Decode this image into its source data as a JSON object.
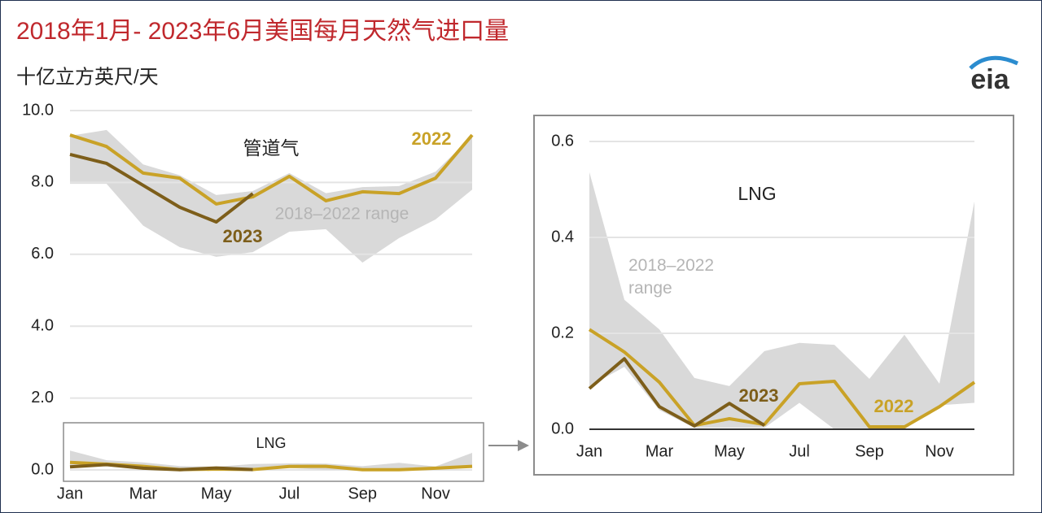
{
  "logo": "eia",
  "chart_data": [
    {
      "type": "line",
      "title": "2018年1月- 2023年6月美国每月天然气进口量",
      "y_label": "十亿立方英尺/天",
      "annotation": "管道气",
      "categories": [
        "Jan",
        null,
        "Mar",
        null,
        "May",
        null,
        "Jul",
        null,
        "Sep",
        null,
        "Nov",
        null
      ],
      "ylim": [
        0,
        10
      ],
      "yticks": [
        {
          "value": 0,
          "label": "0.0"
        },
        {
          "value": 2,
          "label": "2.0"
        },
        {
          "value": 4,
          "label": "4.0"
        },
        {
          "value": 6,
          "label": "6.0"
        },
        {
          "value": 8,
          "label": "8.0"
        },
        {
          "value": 10,
          "label": "10.0"
        }
      ],
      "grid": true,
      "range": {
        "name": "2018–2022 range",
        "color": "#d9d9d9",
        "high": [
          9.3,
          9.46,
          8.5,
          8.2,
          7.65,
          7.76,
          8.26,
          7.7,
          7.87,
          7.9,
          8.3,
          9.3
        ],
        "low": [
          7.96,
          7.96,
          6.8,
          6.2,
          5.93,
          6.06,
          6.63,
          6.7,
          5.77,
          6.45,
          6.97,
          7.8
        ]
      },
      "series": [
        {
          "name": "2022",
          "color": "#c9a227",
          "values": [
            9.32,
            9.0,
            8.26,
            8.12,
            7.4,
            7.6,
            8.17,
            7.49,
            7.74,
            7.69,
            8.12,
            9.32
          ]
        },
        {
          "name": "2023",
          "color": "#7d5e1a",
          "values": [
            8.78,
            8.53,
            7.92,
            7.31,
            6.9,
            7.69,
            null,
            null,
            null,
            null,
            null,
            null
          ]
        }
      ]
    },
    {
      "type": "line",
      "annotation": "LNG",
      "categories": [
        "Jan",
        null,
        "Mar",
        null,
        "May",
        null,
        "Jul",
        null,
        "Sep",
        null,
        "Nov",
        null
      ],
      "ylim": [
        0,
        0.6
      ],
      "yticks": [
        {
          "value": 0,
          "label": "0.0"
        },
        {
          "value": 0.2,
          "label": "0.2"
        },
        {
          "value": 0.4,
          "label": "0.4"
        },
        {
          "value": 0.6,
          "label": "0.6"
        }
      ],
      "grid": true,
      "range": {
        "name": "2018–2022 range",
        "color": "#d9d9d9",
        "high": [
          0.536,
          0.27,
          0.208,
          0.107,
          0.09,
          0.163,
          0.18,
          0.176,
          0.105,
          0.197,
          0.095,
          0.475
        ],
        "low": [
          0.09,
          0.13,
          0.04,
          0.003,
          0.003,
          0.003,
          0.055,
          0.0,
          0.0,
          0.0,
          0.05,
          0.055
        ]
      },
      "series": [
        {
          "name": "2022",
          "color": "#c9a227",
          "values": [
            0.208,
            0.161,
            0.098,
            0.008,
            0.022,
            0.01,
            0.095,
            0.1,
            0.005,
            0.005,
            0.047,
            0.098
          ]
        },
        {
          "name": "2023",
          "color": "#7d5e1a",
          "values": [
            0.085,
            0.147,
            0.047,
            0.007,
            0.054,
            0.008,
            null,
            null,
            null,
            null,
            null,
            null
          ]
        }
      ]
    }
  ]
}
